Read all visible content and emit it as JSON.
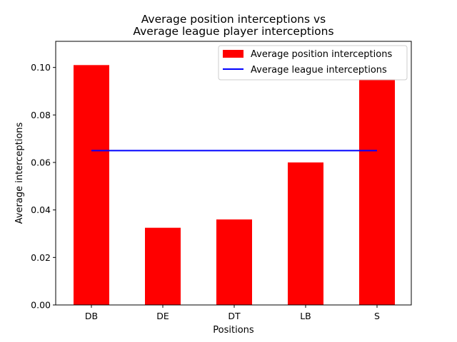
{
  "chart_data": {
    "type": "bar",
    "title_lines": [
      "Average position interceptions vs",
      "Average league player interceptions"
    ],
    "xlabel": "Positions",
    "ylabel": "Average interceptions",
    "categories": [
      "DB",
      "DE",
      "DT",
      "LB",
      "S"
    ],
    "series": [
      {
        "name": "Average position interceptions",
        "type": "bar",
        "color": "#ff0000",
        "values": [
          0.101,
          0.0325,
          0.036,
          0.06,
          0.095
        ]
      },
      {
        "name": "Average league interceptions",
        "type": "line",
        "color": "#0000ff",
        "value": 0.065
      }
    ],
    "ylim": [
      0,
      0.111
    ],
    "yticks": [
      "0.00",
      "0.02",
      "0.04",
      "0.06",
      "0.08",
      "0.10"
    ],
    "legend_position": "top-right",
    "grid": false
  }
}
